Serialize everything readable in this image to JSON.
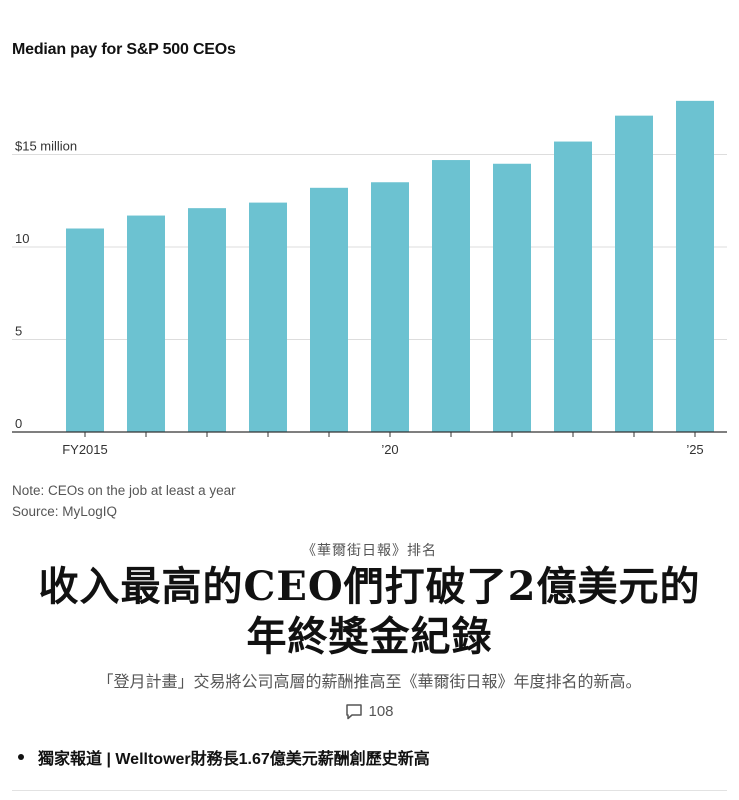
{
  "chart_data": {
    "type": "bar",
    "title": "Median pay for S&P 500 CEOs",
    "categories": [
      "FY2015",
      "2016",
      "2017",
      "2018",
      "2019",
      "2020",
      "2021",
      "2022",
      "2023",
      "2024",
      "2025"
    ],
    "values": [
      11.0,
      11.7,
      12.1,
      12.4,
      13.2,
      13.5,
      14.7,
      14.5,
      15.7,
      17.1,
      17.9
    ],
    "x_tick_labels": [
      {
        "index": 0,
        "label": "FY2015"
      },
      {
        "index": 5,
        "label": "’20"
      },
      {
        "index": 10,
        "label": "’25"
      }
    ],
    "y_ticks": [
      {
        "value": 0,
        "label": "0"
      },
      {
        "value": 5,
        "label": "5"
      },
      {
        "value": 10,
        "label": "10"
      },
      {
        "value": 15,
        "label": "$15 million"
      }
    ],
    "ylim": [
      0,
      18.5
    ],
    "grid": true,
    "bar_color": "#6cc2d1"
  },
  "notes": {
    "note": "Note: CEOs on the job at least a year",
    "source": "Source: MyLogIQ"
  },
  "article": {
    "kicker": "《華爾街日報》排名",
    "headline_line1": "收入最高的CEO們打破了2億美元的",
    "headline_line2": "年終獎金紀錄",
    "dek": "「登月計畫」交易將公司高層的薪酬推高至《華爾街日報》年度排名的新高。",
    "comment_count": "108",
    "related_link": "獨家報道 | Welltower財務長1.67億美元薪酬創歷史新高"
  }
}
